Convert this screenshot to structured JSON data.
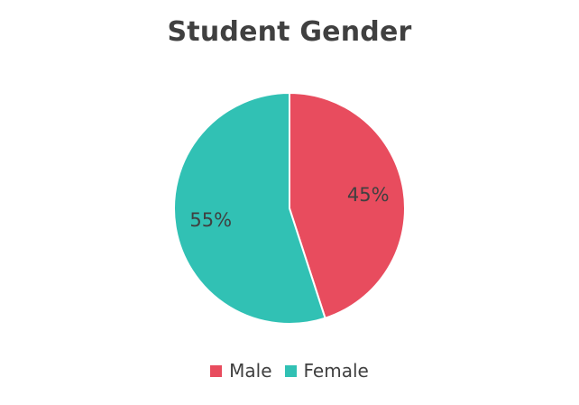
{
  "chart_data": {
    "type": "pie",
    "title": "Student Gender",
    "slices": [
      {
        "label": "Male",
        "value": 45,
        "display": "45%",
        "color": "#e84c5e"
      },
      {
        "label": "Female",
        "value": 55,
        "display": "55%",
        "color": "#31c1b4"
      }
    ],
    "start": "12 o'clock",
    "direction": "clockwise",
    "legend": "bottom"
  }
}
